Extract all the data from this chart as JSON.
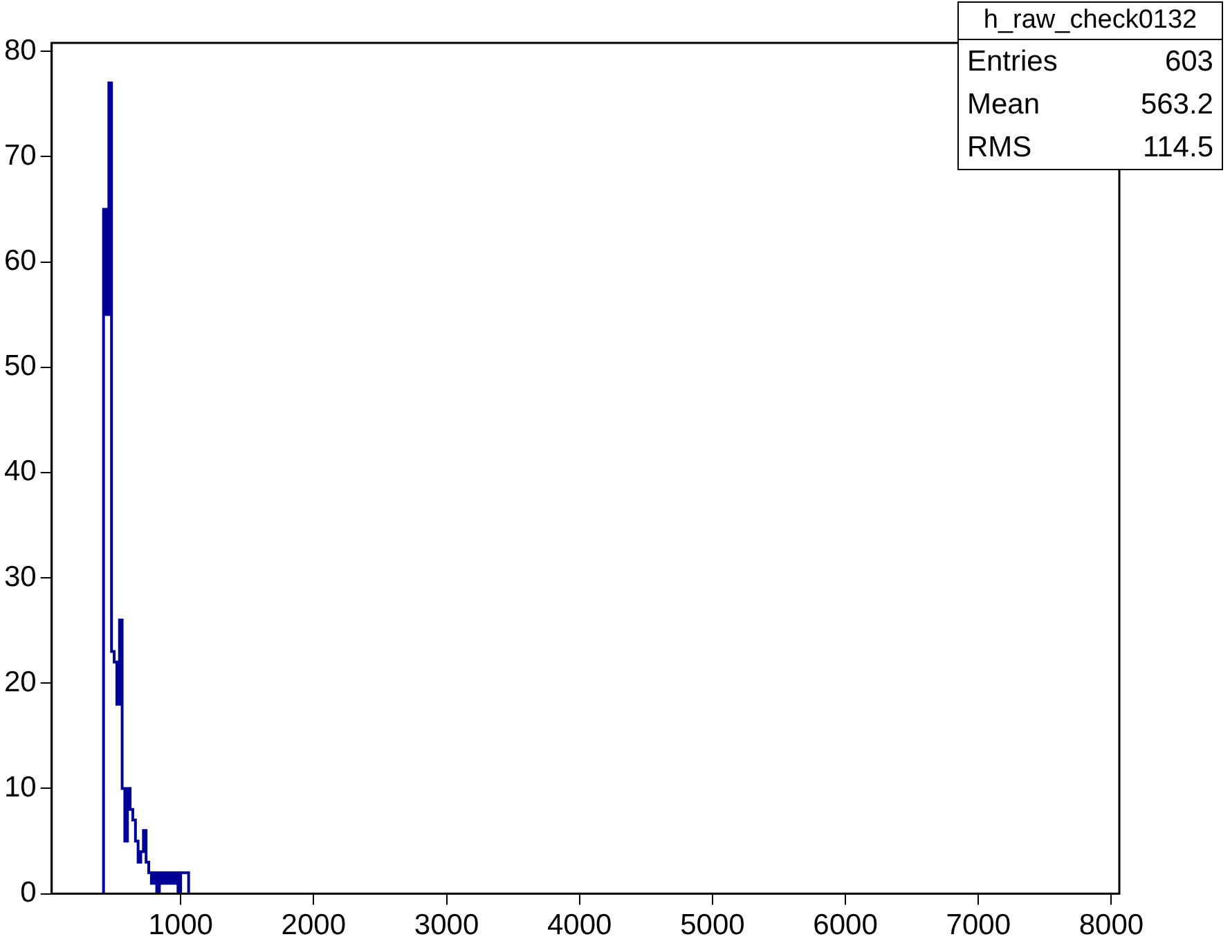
{
  "chart_data": {
    "type": "histogram",
    "title": "h_raw_check0132",
    "bins": [
      420,
      440,
      460,
      480,
      500,
      520,
      540,
      560,
      580,
      600,
      620,
      640,
      660,
      680,
      700,
      720,
      740,
      760,
      780,
      800,
      820,
      840,
      860,
      880,
      900,
      920,
      940,
      960,
      980,
      1000,
      1020,
      1040,
      1060
    ],
    "values": [
      11,
      65,
      55,
      77,
      23,
      22,
      18,
      26,
      10,
      5,
      10,
      8,
      7,
      5,
      3,
      4,
      6,
      3,
      2,
      1,
      2,
      0,
      2,
      1,
      2,
      1,
      2,
      1,
      2,
      0,
      2,
      2
    ],
    "color": "#000099",
    "xlim": [
      30,
      8060
    ],
    "xticks": [
      1000,
      2000,
      3000,
      4000,
      5000,
      6000,
      7000,
      8000
    ],
    "ylim": [
      0,
      80.8
    ],
    "yticks": [
      0,
      10,
      20,
      30,
      40,
      50,
      60,
      70,
      80
    ],
    "grid": false,
    "legend": false,
    "annotations": [
      "Entries 603",
      "Mean 563.2",
      "RMS 114.5"
    ]
  }
}
